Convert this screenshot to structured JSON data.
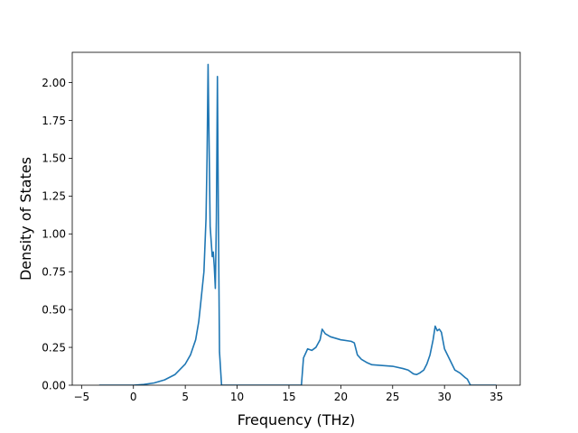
{
  "chart_data": {
    "type": "line",
    "title": "",
    "xlabel": "Frequency (THz)",
    "ylabel": "Density of States",
    "xlim": [
      -5.9,
      37.3
    ],
    "ylim": [
      0,
      2.2
    ],
    "grid": false,
    "line_color": "#1f77b4",
    "x_ticks": [
      -5,
      0,
      5,
      10,
      15,
      20,
      25,
      30,
      35
    ],
    "x_tick_labels": [
      "−5",
      "0",
      "5",
      "10",
      "15",
      "20",
      "25",
      "30",
      "35"
    ],
    "y_ticks": [
      0,
      0.25,
      0.5,
      0.75,
      1.0,
      1.25,
      1.5,
      1.75,
      2.0
    ],
    "y_tick_labels": [
      "0.00",
      "0.25",
      "0.50",
      "0.75",
      "1.00",
      "1.25",
      "1.50",
      "1.75",
      "2.00"
    ],
    "series": [
      {
        "x": [
          -3.3,
          -2,
          -1,
          0,
          1,
          2,
          3,
          4,
          5,
          5.5,
          6,
          6.3,
          6.5,
          6.8,
          7.0,
          7.1,
          7.2,
          7.4,
          7.6,
          7.7,
          7.8,
          7.9,
          8.0,
          8.1,
          8.2,
          8.3,
          8.5,
          8.7,
          9,
          10,
          12,
          14,
          16,
          16.2,
          16.4,
          16.8,
          17.2,
          17.6,
          18.0,
          18.2,
          18.5,
          19,
          20,
          21,
          21.3,
          21.6,
          22,
          22.5,
          23,
          24,
          25,
          26,
          26.5,
          27,
          27.3,
          27.6,
          28,
          28.3,
          28.6,
          28.9,
          29.1,
          29.3,
          29.5,
          29.7,
          30,
          30.5,
          31,
          31.5,
          32,
          32.2,
          32.5,
          33,
          34,
          35
        ],
        "y": [
          0,
          0,
          0,
          0,
          0.005,
          0.015,
          0.035,
          0.07,
          0.14,
          0.2,
          0.3,
          0.42,
          0.55,
          0.75,
          1.1,
          1.5,
          2.12,
          1.05,
          0.85,
          0.88,
          0.78,
          0.64,
          1.1,
          2.04,
          1.05,
          0.22,
          0,
          0,
          0,
          0,
          0,
          0,
          0,
          0,
          0.18,
          0.24,
          0.23,
          0.25,
          0.3,
          0.37,
          0.34,
          0.32,
          0.3,
          0.29,
          0.28,
          0.2,
          0.17,
          0.15,
          0.135,
          0.13,
          0.125,
          0.11,
          0.1,
          0.075,
          0.07,
          0.08,
          0.1,
          0.14,
          0.2,
          0.3,
          0.39,
          0.36,
          0.37,
          0.35,
          0.24,
          0.17,
          0.1,
          0.08,
          0.05,
          0.04,
          0,
          0,
          0,
          0
        ]
      }
    ]
  }
}
